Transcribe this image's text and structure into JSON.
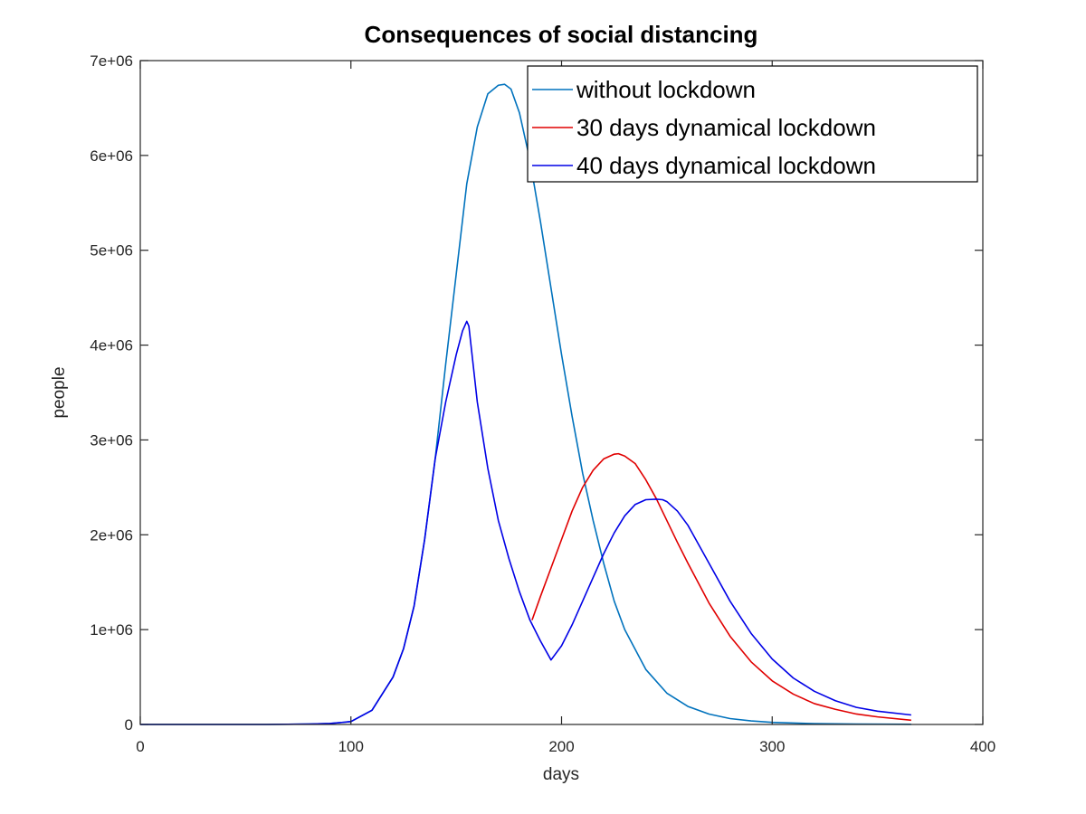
{
  "chart_data": {
    "type": "line",
    "title": "Consequences of social distancing",
    "xlabel": "days",
    "ylabel": "people",
    "xlim": [
      0,
      400
    ],
    "ylim": [
      0,
      7000000
    ],
    "xticks": [
      0,
      100,
      200,
      300,
      400
    ],
    "xtick_labels": [
      "0",
      "100",
      "200",
      "300",
      "400"
    ],
    "yticks": [
      0,
      1000000,
      2000000,
      3000000,
      4000000,
      5000000,
      6000000,
      7000000
    ],
    "ytick_labels": [
      "0",
      "1e+06",
      "2e+06",
      "3e+06",
      "4e+06",
      "5e+06",
      "6e+06",
      "7e+06"
    ],
    "grid": false,
    "legend_position": "top-right",
    "series": [
      {
        "name": "without lockdown",
        "color": "#0072bd",
        "x": [
          0,
          60,
          80,
          90,
          100,
          110,
          120,
          125,
          130,
          135,
          140,
          145,
          150,
          155,
          160,
          165,
          170,
          173,
          176,
          180,
          185,
          190,
          195,
          200,
          205,
          210,
          215,
          220,
          225,
          230,
          240,
          250,
          260,
          270,
          280,
          290,
          300,
          320,
          340,
          366
        ],
        "y": [
          0,
          0,
          4000,
          10000,
          30000,
          150000,
          500000,
          800000,
          1250000,
          1950000,
          2800000,
          3800000,
          4750000,
          5700000,
          6300000,
          6650000,
          6740000,
          6750000,
          6700000,
          6450000,
          5950000,
          5300000,
          4600000,
          3900000,
          3250000,
          2650000,
          2150000,
          1700000,
          1300000,
          1000000,
          580000,
          330000,
          190000,
          110000,
          62000,
          38000,
          22000,
          9000,
          4000,
          1500
        ]
      },
      {
        "name": "30 days dynamical lockdown",
        "color": "#e00000",
        "x": [
          186,
          190,
          195,
          200,
          205,
          210,
          215,
          220,
          225,
          227,
          230,
          235,
          240,
          245,
          250,
          255,
          260,
          270,
          280,
          290,
          300,
          310,
          320,
          330,
          340,
          350,
          366
        ],
        "y": [
          1100000,
          1350000,
          1650000,
          1950000,
          2250000,
          2500000,
          2680000,
          2800000,
          2850000,
          2855000,
          2830000,
          2750000,
          2580000,
          2380000,
          2150000,
          1920000,
          1700000,
          1280000,
          930000,
          660000,
          460000,
          320000,
          220000,
          160000,
          110000,
          80000,
          45000
        ]
      },
      {
        "name": "40 days dynamical lockdown",
        "color": "#0000e6",
        "x": [
          0,
          60,
          80,
          90,
          100,
          110,
          120,
          125,
          130,
          135,
          140,
          145,
          150,
          153,
          155,
          156,
          158,
          160,
          165,
          170,
          175,
          180,
          185,
          190,
          195,
          200,
          205,
          210,
          215,
          220,
          225,
          230,
          235,
          240,
          245,
          248,
          250,
          255,
          260,
          270,
          280,
          290,
          300,
          310,
          320,
          330,
          340,
          350,
          366
        ],
        "y": [
          0,
          0,
          4000,
          10000,
          30000,
          150000,
          500000,
          800000,
          1250000,
          1950000,
          2800000,
          3400000,
          3900000,
          4150000,
          4250000,
          4200000,
          3800000,
          3400000,
          2700000,
          2150000,
          1750000,
          1400000,
          1100000,
          880000,
          680000,
          830000,
          1050000,
          1300000,
          1550000,
          1800000,
          2020000,
          2200000,
          2320000,
          2370000,
          2375000,
          2370000,
          2350000,
          2250000,
          2100000,
          1700000,
          1300000,
          960000,
          690000,
          490000,
          350000,
          250000,
          180000,
          140000,
          100000
        ]
      }
    ]
  }
}
